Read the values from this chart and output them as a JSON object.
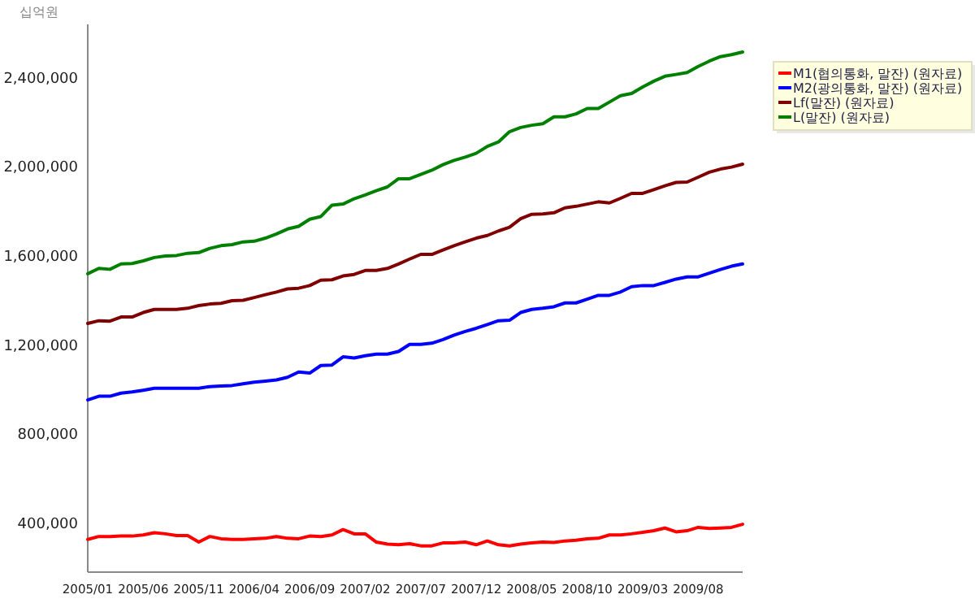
{
  "chart_data": {
    "type": "line",
    "ylabel": "십억원",
    "categories": [
      "2005/01",
      null,
      null,
      null,
      null,
      "2005/06",
      null,
      null,
      null,
      null,
      "2005/11",
      null,
      null,
      null,
      null,
      "2006/04",
      null,
      null,
      null,
      null,
      "2006/09",
      null,
      null,
      null,
      null,
      "2007/02",
      null,
      null,
      null,
      null,
      "2007/07",
      null,
      null,
      null,
      null,
      "2007/12",
      null,
      null,
      null,
      null,
      "2008/05",
      null,
      null,
      null,
      null,
      "2008/10",
      null,
      null,
      null,
      null,
      "2009/03",
      null,
      null,
      null,
      null,
      "2009/08",
      null,
      null,
      null,
      null
    ],
    "series": [
      {
        "name": "M1(협의통화, 말잔) (원자료)",
        "color": "#ff0000",
        "values": [
          327000,
          340000,
          340000,
          342000,
          342000,
          347000,
          357000,
          352000,
          344000,
          344000,
          315000,
          340000,
          330000,
          327000,
          327000,
          330000,
          332000,
          340000,
          332000,
          330000,
          342000,
          340000,
          347000,
          371000,
          352000,
          352000,
          315000,
          306000,
          303000,
          308000,
          298000,
          298000,
          311000,
          311000,
          315000,
          303000,
          320000,
          303000,
          298000,
          306000,
          311000,
          315000,
          313000,
          320000,
          323000,
          330000,
          332000,
          347000,
          347000,
          352000,
          359000,
          366000,
          378000,
          361000,
          366000,
          381000,
          376000,
          378000,
          381000,
          395000
        ]
      },
      {
        "name": "M2(광의통화, 말잔) (원자료)",
        "color": "#0000ff",
        "values": [
          953000,
          970000,
          970000,
          984000,
          989000,
          997000,
          1006000,
          1006000,
          1006000,
          1006000,
          1006000,
          1013000,
          1016000,
          1018000,
          1026000,
          1033000,
          1038000,
          1043000,
          1055000,
          1079000,
          1074000,
          1108000,
          1110000,
          1147000,
          1142000,
          1152000,
          1159000,
          1159000,
          1171000,
          1203000,
          1203000,
          1208000,
          1224000,
          1244000,
          1261000,
          1275000,
          1292000,
          1309000,
          1311000,
          1346000,
          1360000,
          1365000,
          1372000,
          1389000,
          1389000,
          1406000,
          1423000,
          1423000,
          1438000,
          1462000,
          1467000,
          1467000,
          1481000,
          1496000,
          1506000,
          1506000,
          1523000,
          1539000,
          1554000,
          1564000
        ]
      },
      {
        "name": "Lf(말잔) (원자료)",
        "color": "#800000",
        "values": [
          1297000,
          1309000,
          1307000,
          1326000,
          1326000,
          1346000,
          1360000,
          1360000,
          1360000,
          1365000,
          1377000,
          1384000,
          1387000,
          1399000,
          1401000,
          1413000,
          1426000,
          1438000,
          1452000,
          1455000,
          1467000,
          1491000,
          1493000,
          1510000,
          1517000,
          1535000,
          1535000,
          1544000,
          1564000,
          1586000,
          1607000,
          1607000,
          1627000,
          1646000,
          1663000,
          1680000,
          1692000,
          1712000,
          1729000,
          1767000,
          1787000,
          1789000,
          1794000,
          1816000,
          1823000,
          1833000,
          1843000,
          1838000,
          1859000,
          1881000,
          1881000,
          1898000,
          1915000,
          1930000,
          1932000,
          1954000,
          1976000,
          1990000,
          1999000,
          2012000
        ]
      },
      {
        "name": "L(말잔) (원자료)",
        "color": "#008000",
        "values": [
          1520000,
          1544000,
          1540000,
          1564000,
          1566000,
          1578000,
          1593000,
          1600000,
          1602000,
          1612000,
          1615000,
          1634000,
          1646000,
          1651000,
          1663000,
          1666000,
          1680000,
          1699000,
          1721000,
          1733000,
          1765000,
          1777000,
          1828000,
          1833000,
          1857000,
          1874000,
          1893000,
          1910000,
          1947000,
          1947000,
          1966000,
          1985000,
          2010000,
          2029000,
          2044000,
          2061000,
          2092000,
          2112000,
          2158000,
          2177000,
          2187000,
          2194000,
          2225000,
          2225000,
          2238000,
          2262000,
          2262000,
          2291000,
          2320000,
          2330000,
          2359000,
          2385000,
          2407000,
          2415000,
          2424000,
          2451000,
          2475000,
          2495000,
          2504000,
          2516000
        ]
      }
    ],
    "ylim": [
      180000,
      2640000
    ],
    "yticks": [
      {
        "value": 400000,
        "label": "400,000"
      },
      {
        "value": 800000,
        "label": "800,000"
      },
      {
        "value": 1200000,
        "label": "1,200,000"
      },
      {
        "value": 1600000,
        "label": "1,600,000"
      },
      {
        "value": 2000000,
        "label": "2,000,000"
      },
      {
        "value": 2400000,
        "label": "2,400,000"
      }
    ],
    "grid": false,
    "legend": "top right",
    "line_style": "solid",
    "marker": "none"
  }
}
